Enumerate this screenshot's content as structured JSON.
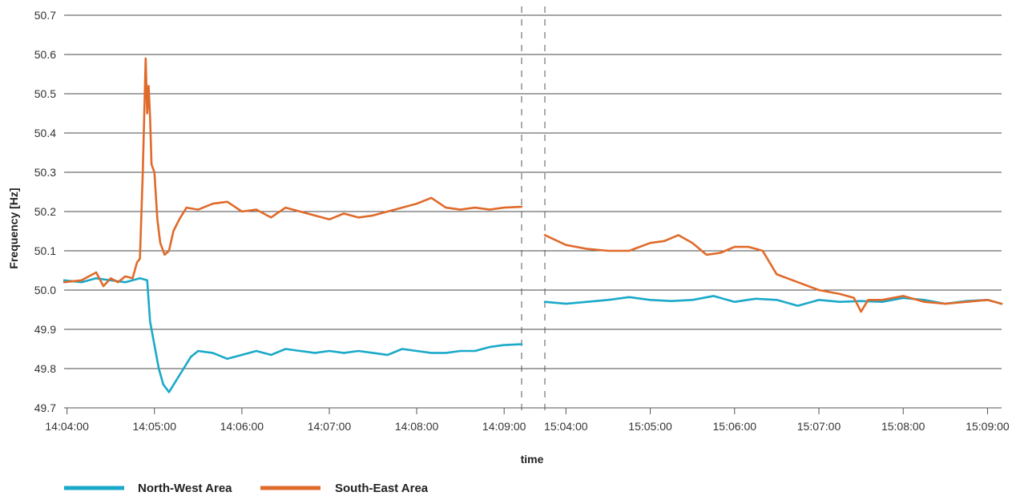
{
  "chart_data": {
    "type": "line",
    "ylabel": "Frequency [Hz]",
    "xlabel": "time",
    "ylim": [
      49.7,
      50.7
    ],
    "yticks": [
      "49.7",
      "49.8",
      "49.9",
      "50.0",
      "50.1",
      "50.2",
      "50.3",
      "50.4",
      "50.5",
      "50.6",
      "50.7"
    ],
    "grid": "horizontal",
    "legend_position": "bottom-left",
    "colors": {
      "north_west": "#1aa9c9",
      "south_east": "#e06a2a",
      "grid": "#4a4a4a"
    },
    "segments": [
      {
        "xlim": [
          "14:03:58",
          "14:09:12"
        ],
        "xticks": [
          "14:04:00",
          "14:05:00",
          "14:06:00",
          "14:07:00",
          "14:08:00",
          "14:09:00"
        ]
      },
      {
        "xlim": [
          "15:03:45",
          "15:09:10"
        ],
        "xticks": [
          "15:04:00",
          "15:05:00",
          "15:06:00",
          "15:07:00",
          "15:08:00",
          "15:09:00"
        ]
      }
    ],
    "series": [
      {
        "name": "North-West Area",
        "segments": [
          {
            "x": [
              "14:03:58",
              "14:04:10",
              "14:04:20",
              "14:04:30",
              "14:04:40",
              "14:04:50",
              "14:04:55",
              "14:04:57",
              "14:05:00",
              "14:05:03",
              "14:05:06",
              "14:05:10",
              "14:05:15",
              "14:05:20",
              "14:05:25",
              "14:05:30",
              "14:05:40",
              "14:05:50",
              "14:06:00",
              "14:06:10",
              "14:06:20",
              "14:06:30",
              "14:06:40",
              "14:06:50",
              "14:07:00",
              "14:07:10",
              "14:07:20",
              "14:07:30",
              "14:07:40",
              "14:07:50",
              "14:08:00",
              "14:08:10",
              "14:08:20",
              "14:08:30",
              "14:08:40",
              "14:08:50",
              "14:09:00",
              "14:09:12"
            ],
            "y": [
              50.025,
              50.02,
              50.03,
              50.025,
              50.02,
              50.03,
              50.025,
              49.92,
              49.86,
              49.8,
              49.76,
              49.74,
              49.77,
              49.8,
              49.83,
              49.845,
              49.84,
              49.825,
              49.835,
              49.845,
              49.835,
              49.85,
              49.845,
              49.84,
              49.845,
              49.84,
              49.845,
              49.84,
              49.835,
              49.85,
              49.845,
              49.84,
              49.84,
              49.845,
              49.845,
              49.855,
              49.86,
              49.862
            ]
          },
          {
            "x": [
              "15:03:45",
              "15:04:00",
              "15:04:15",
              "15:04:30",
              "15:04:45",
              "15:05:00",
              "15:05:15",
              "15:05:30",
              "15:05:45",
              "15:06:00",
              "15:06:15",
              "15:06:30",
              "15:06:45",
              "15:07:00",
              "15:07:15",
              "15:07:30",
              "15:07:45",
              "15:08:00",
              "15:08:15",
              "15:08:30",
              "15:08:45",
              "15:09:00",
              "15:09:10"
            ],
            "y": [
              49.97,
              49.965,
              49.97,
              49.975,
              49.982,
              49.975,
              49.972,
              49.975,
              49.985,
              49.97,
              49.978,
              49.975,
              49.96,
              49.975,
              49.97,
              49.972,
              49.97,
              49.98,
              49.975,
              49.965,
              49.972,
              49.975,
              49.965
            ]
          }
        ]
      },
      {
        "name": "South-East Area",
        "segments": [
          {
            "x": [
              "14:03:58",
              "14:04:10",
              "14:04:15",
              "14:04:20",
              "14:04:25",
              "14:04:30",
              "14:04:35",
              "14:04:40",
              "14:04:45",
              "14:04:48",
              "14:04:50",
              "14:04:52",
              "14:04:54",
              "14:04:55",
              "14:04:56",
              "14:04:57",
              "14:04:58",
              "14:05:00",
              "14:05:02",
              "14:05:04",
              "14:05:07",
              "14:05:10",
              "14:05:13",
              "14:05:17",
              "14:05:22",
              "14:05:30",
              "14:05:40",
              "14:05:50",
              "14:06:00",
              "14:06:10",
              "14:06:20",
              "14:06:30",
              "14:06:40",
              "14:06:50",
              "14:07:00",
              "14:07:10",
              "14:07:20",
              "14:07:30",
              "14:07:40",
              "14:07:50",
              "14:08:00",
              "14:08:10",
              "14:08:20",
              "14:08:30",
              "14:08:40",
              "14:08:50",
              "14:09:00",
              "14:09:12"
            ],
            "y": [
              50.02,
              50.025,
              50.035,
              50.045,
              50.01,
              50.03,
              50.02,
              50.035,
              50.03,
              50.07,
              50.08,
              50.3,
              50.59,
              50.45,
              50.52,
              50.44,
              50.32,
              50.3,
              50.18,
              50.12,
              50.09,
              50.1,
              50.15,
              50.18,
              50.21,
              50.205,
              50.22,
              50.225,
              50.2,
              50.205,
              50.185,
              50.21,
              50.2,
              50.19,
              50.18,
              50.195,
              50.185,
              50.19,
              50.2,
              50.21,
              50.22,
              50.235,
              50.21,
              50.205,
              50.21,
              50.205,
              50.21,
              50.212
            ]
          },
          {
            "x": [
              "15:03:45",
              "15:04:00",
              "15:04:15",
              "15:04:30",
              "15:04:45",
              "15:05:00",
              "15:05:10",
              "15:05:20",
              "15:05:30",
              "15:05:40",
              "15:05:50",
              "15:06:00",
              "15:06:10",
              "15:06:20",
              "15:06:30",
              "15:06:45",
              "15:07:00",
              "15:07:15",
              "15:07:25",
              "15:07:30",
              "15:07:35",
              "15:07:45",
              "15:08:00",
              "15:08:15",
              "15:08:30",
              "15:08:45",
              "15:09:00",
              "15:09:10"
            ],
            "y": [
              50.14,
              50.115,
              50.105,
              50.1,
              50.1,
              50.12,
              50.125,
              50.14,
              50.12,
              50.09,
              50.095,
              50.11,
              50.11,
              50.1,
              50.04,
              50.02,
              50.0,
              49.99,
              49.98,
              49.945,
              49.975,
              49.975,
              49.985,
              49.97,
              49.965,
              49.97,
              49.975,
              49.965
            ]
          }
        ]
      }
    ]
  }
}
